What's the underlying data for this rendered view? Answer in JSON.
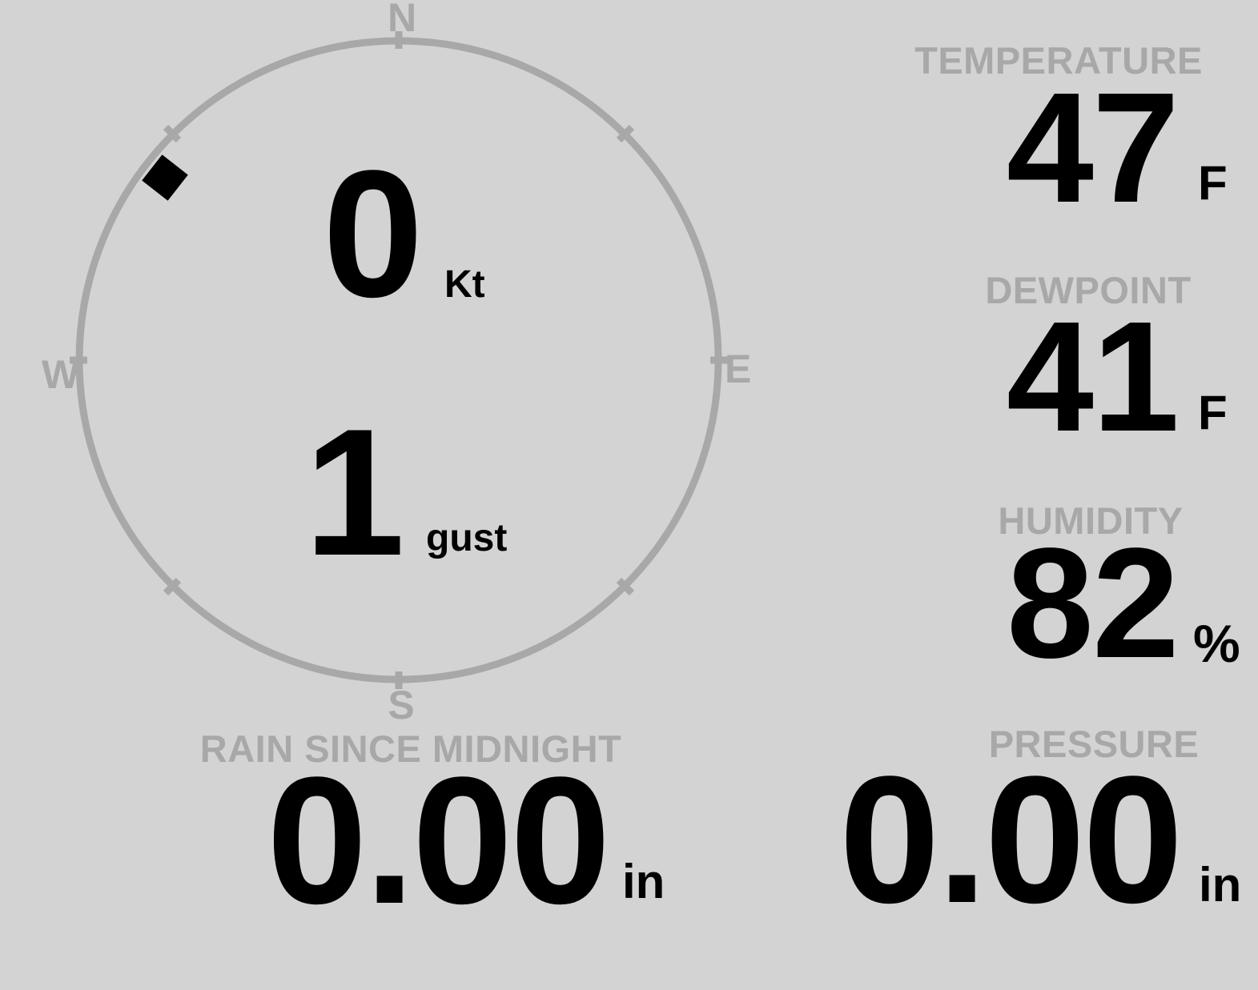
{
  "colors": {
    "background": "#d3d3d3",
    "dial": "#a8a8a8",
    "ink": "#000000"
  },
  "compass": {
    "north": "N",
    "east": "E",
    "south": "S",
    "west": "W"
  },
  "wind": {
    "speed": "0",
    "speed_unit": "Kt",
    "gust": "1",
    "gust_unit": "gust",
    "direction_deg": 308
  },
  "temperature": {
    "label": "TEMPERATURE",
    "value": "47",
    "unit": "F"
  },
  "dewpoint": {
    "label": "DEWPOINT",
    "value": "41",
    "unit": "F"
  },
  "humidity": {
    "label": "HUMIDITY",
    "value": "82",
    "unit": "%"
  },
  "rain": {
    "label": "RAIN SINCE MIDNIGHT",
    "value": "0.00",
    "unit": "in"
  },
  "pressure": {
    "label": "PRESSURE",
    "value": "0.00",
    "unit": "in"
  }
}
